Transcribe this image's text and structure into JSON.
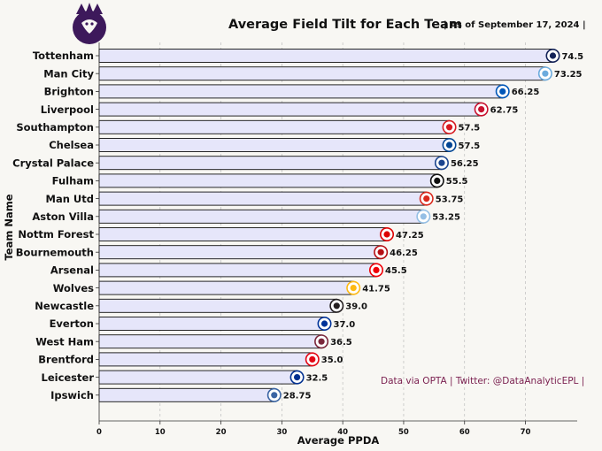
{
  "chart_data": {
    "type": "bar",
    "orientation": "horizontal",
    "title": "Average Field Tilt for Each Team",
    "subtitle": "| As of September 17, 2024 |",
    "xlabel": "Average PPDA",
    "ylabel": "Team Name",
    "xlim": [
      0,
      78.5
    ],
    "xticks": [
      0,
      10,
      20,
      30,
      40,
      50,
      60,
      70
    ],
    "grid": "vertical dashed",
    "categories": [
      "Tottenham",
      "Man City",
      "Brighton",
      "Liverpool",
      "Southampton",
      "Chelsea",
      "Crystal Palace",
      "Fulham",
      "Man Utd",
      "Aston Villa",
      "Nottm Forest",
      "Bournemouth",
      "Arsenal",
      "Wolves",
      "Newcastle",
      "Everton",
      "West Ham",
      "Brentford",
      "Leicester",
      "Ipswich"
    ],
    "values": [
      74.5,
      73.25,
      66.25,
      62.75,
      57.5,
      57.5,
      56.25,
      55.5,
      53.75,
      53.25,
      47.25,
      46.25,
      45.5,
      41.75,
      39.0,
      37.0,
      36.5,
      35.0,
      32.5,
      28.75
    ],
    "value_labels": [
      "74.5",
      "73.25",
      "66.25",
      "62.75",
      "57.5",
      "57.5",
      "56.25",
      "55.5",
      "53.75",
      "53.25",
      "47.25",
      "46.25",
      "45.5",
      "41.75",
      "39.0",
      "37.0",
      "36.5",
      "35.0",
      "32.5",
      "28.75"
    ],
    "badge_colors": [
      "#132257",
      "#6cabdd",
      "#0057b8",
      "#c8102e",
      "#d71920",
      "#034694",
      "#1b458f",
      "#111111",
      "#da291c",
      "#95bfe5",
      "#dd0000",
      "#b50e12",
      "#ef0107",
      "#fdb913",
      "#241f20",
      "#003399",
      "#7a263a",
      "#e30613",
      "#003090",
      "#3a64a3"
    ],
    "bar_color": "#e6e6fa",
    "bar_edge_color": "#111111"
  },
  "logo": {
    "icon": "premier-league-lion-icon",
    "color": "#3d195b"
  },
  "footer": {
    "source_note": "Data via OPTA | Twitter: @DataAnalyticEPL |"
  }
}
